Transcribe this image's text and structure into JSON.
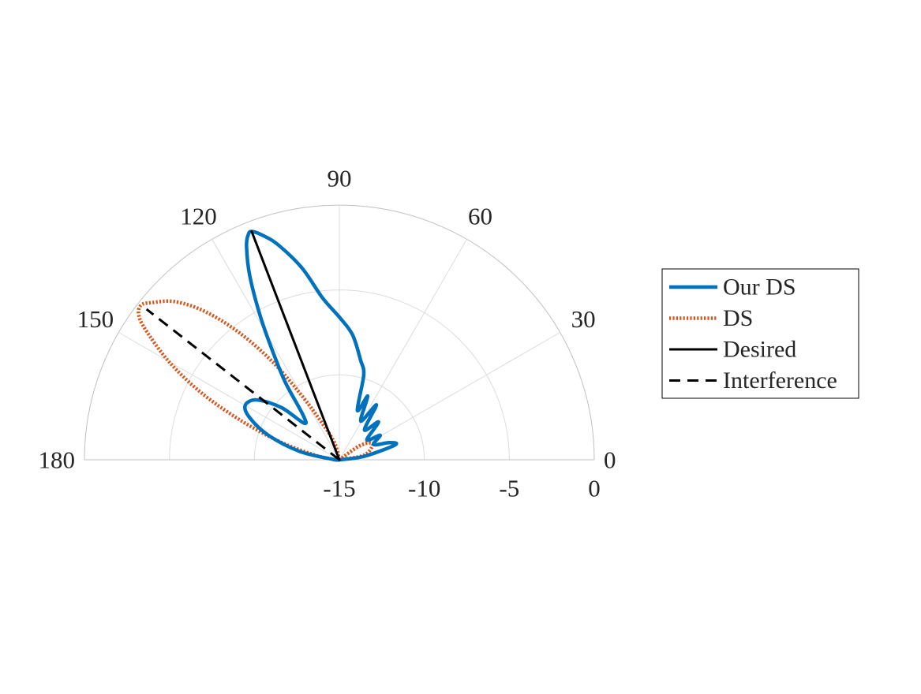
{
  "chart_data": {
    "type": "polar",
    "half_plane": true,
    "theta_unit": "degrees",
    "r_unit": "dB",
    "theta_range": [
      0,
      180
    ],
    "r_range": [
      -15,
      0
    ],
    "theta_ticks": [
      {
        "value": 0,
        "label": "0"
      },
      {
        "value": 30,
        "label": "30"
      },
      {
        "value": 60,
        "label": "60"
      },
      {
        "value": 90,
        "label": "90"
      },
      {
        "value": 120,
        "label": "120"
      },
      {
        "value": 150,
        "label": "150"
      },
      {
        "value": 180,
        "label": "180"
      }
    ],
    "r_ticks": [
      {
        "value": -15,
        "label": "-15"
      },
      {
        "value": -10,
        "label": "-10"
      },
      {
        "value": -5,
        "label": "-5"
      },
      {
        "value": 0,
        "label": "0"
      }
    ],
    "grid": true,
    "legend_position": "right",
    "colors": {
      "our_ds": "#0072BD",
      "ds": "#D95319",
      "desired": "#000000",
      "interference": "#000000",
      "grid": "#dcdcdc",
      "axis": "#c0c0c0",
      "text": "#262626"
    },
    "series": [
      {
        "name": "Our DS",
        "style": "solid",
        "color": "#0072BD",
        "points": [
          {
            "theta": 0,
            "r": -15
          },
          {
            "theta": 8,
            "r": -13.5
          },
          {
            "theta": 15,
            "r": -11.6
          },
          {
            "theta": 19,
            "r": -11.9
          },
          {
            "theta": 24,
            "r": -12.8
          },
          {
            "theta": 31,
            "r": -12.2
          },
          {
            "theta": 36,
            "r": -13.0
          },
          {
            "theta": 44,
            "r": -11.8
          },
          {
            "theta": 50,
            "r": -12.7
          },
          {
            "theta": 56,
            "r": -11.1
          },
          {
            "theta": 61,
            "r": -12.4
          },
          {
            "theta": 66,
            "r": -10.9
          },
          {
            "theta": 70,
            "r": -11.9
          },
          {
            "theta": 74,
            "r": -9.8
          },
          {
            "theta": 78,
            "r": -9.0
          },
          {
            "theta": 84,
            "r": -7.6
          },
          {
            "theta": 90,
            "r": -6.6
          },
          {
            "theta": 96,
            "r": -5.4
          },
          {
            "theta": 101,
            "r": -3.5
          },
          {
            "theta": 106,
            "r": -1.8
          },
          {
            "theta": 109,
            "r": -1.0
          },
          {
            "theta": 111,
            "r": -0.6
          },
          {
            "theta": 112,
            "r": -0.7
          },
          {
            "theta": 113.5,
            "r": -1.3
          },
          {
            "theta": 116,
            "r": -3.0
          },
          {
            "theta": 119,
            "r": -5.5
          },
          {
            "theta": 122,
            "r": -7.8
          },
          {
            "theta": 125,
            "r": -9.5
          },
          {
            "theta": 129,
            "r": -11.6
          },
          {
            "theta": 134,
            "r": -12.0
          },
          {
            "theta": 138,
            "r": -10.4
          },
          {
            "theta": 144,
            "r": -9.0
          },
          {
            "theta": 150,
            "r": -8.6
          },
          {
            "theta": 155,
            "r": -9.2
          },
          {
            "theta": 161,
            "r": -10.6
          },
          {
            "theta": 168,
            "r": -12.6
          },
          {
            "theta": 176,
            "r": -14.6
          },
          {
            "theta": 180,
            "r": -15
          }
        ]
      },
      {
        "name": "DS",
        "style": "dotted",
        "color": "#D95319",
        "points": [
          {
            "theta": 0,
            "r": -15
          },
          {
            "theta": 10,
            "r": -13.6
          },
          {
            "theta": 20,
            "r": -13.0
          },
          {
            "theta": 28,
            "r": -12.9
          },
          {
            "theta": 35,
            "r": -13.6
          },
          {
            "theta": 42,
            "r": -15
          },
          {
            "theta": 60,
            "r": -15
          },
          {
            "theta": 100,
            "r": -15
          },
          {
            "theta": 104,
            "r": -14.2
          },
          {
            "theta": 110,
            "r": -13.5
          },
          {
            "theta": 116,
            "r": -12.4
          },
          {
            "theta": 120,
            "r": -10.8
          },
          {
            "theta": 124,
            "r": -8.2
          },
          {
            "theta": 128,
            "r": -5.6
          },
          {
            "theta": 132,
            "r": -3.3
          },
          {
            "theta": 136,
            "r": -1.6
          },
          {
            "theta": 140,
            "r": -0.6
          },
          {
            "theta": 142,
            "r": -0.2
          },
          {
            "theta": 144,
            "r": -0.4
          },
          {
            "theta": 146,
            "r": -1.2
          },
          {
            "theta": 150,
            "r": -3.4
          },
          {
            "theta": 154,
            "r": -5.9
          },
          {
            "theta": 158,
            "r": -8.6
          },
          {
            "theta": 163,
            "r": -11.3
          },
          {
            "theta": 169,
            "r": -13.5
          },
          {
            "theta": 175,
            "r": -14.6
          },
          {
            "theta": 180,
            "r": -15
          }
        ]
      },
      {
        "name": "Desired",
        "style": "solid",
        "color": "#000000",
        "points": [
          {
            "theta": 111,
            "r": -15
          },
          {
            "theta": 111,
            "r": -0.6
          }
        ]
      },
      {
        "name": "Interference",
        "style": "dashed",
        "color": "#000000",
        "points": [
          {
            "theta": 142,
            "r": -15
          },
          {
            "theta": 142,
            "r": -0.6
          }
        ]
      }
    ]
  }
}
